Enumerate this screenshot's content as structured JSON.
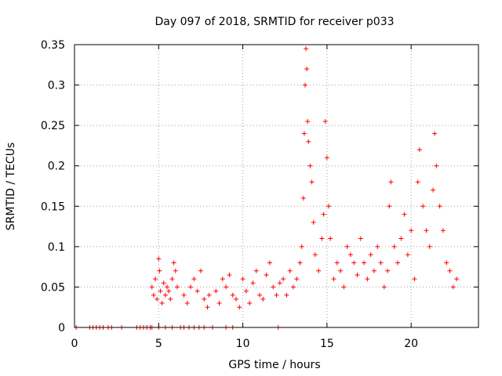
{
  "chart_data": {
    "type": "scatter",
    "title": "Day 097 of 2018, SRMTID for receiver p033",
    "xlabel": "GPS time / hours",
    "ylabel": "SRMTID / TECUs",
    "xlim": [
      0,
      24
    ],
    "ylim": [
      0,
      0.35
    ],
    "xticks": [
      0,
      5,
      10,
      15,
      20
    ],
    "xtick_labels": [
      "0",
      "5",
      "10",
      "15",
      "20"
    ],
    "yticks": [
      0,
      0.05,
      0.1,
      0.15,
      0.2,
      0.25,
      0.3,
      0.35
    ],
    "ytick_labels": [
      "0",
      "0.05",
      "0.1",
      "0.15",
      "0.2",
      "0.25",
      "0.3",
      "0.35"
    ],
    "grid": true,
    "legend": "none",
    "marker": "+",
    "series": [
      {
        "name": "SRMTID",
        "color": "#ff0000",
        "points": [
          [
            0.1,
            0
          ],
          [
            0.9,
            0
          ],
          [
            1.1,
            0
          ],
          [
            1.3,
            0
          ],
          [
            1.5,
            0
          ],
          [
            1.7,
            0
          ],
          [
            2.0,
            0
          ],
          [
            2.2,
            0
          ],
          [
            2.8,
            0
          ],
          [
            3.7,
            0
          ],
          [
            3.9,
            0
          ],
          [
            4.1,
            0
          ],
          [
            4.3,
            0
          ],
          [
            4.5,
            0
          ],
          [
            4.6,
            0
          ],
          [
            5.0,
            0
          ],
          [
            5.4,
            0
          ],
          [
            5.8,
            0
          ],
          [
            6.3,
            0
          ],
          [
            6.5,
            0
          ],
          [
            6.8,
            0
          ],
          [
            7.1,
            0
          ],
          [
            7.4,
            0
          ],
          [
            7.7,
            0
          ],
          [
            8.2,
            0
          ],
          [
            9.0,
            0
          ],
          [
            9.4,
            0
          ],
          [
            12.1,
            0
          ],
          [
            4.6,
            0.05
          ],
          [
            4.7,
            0.04
          ],
          [
            4.8,
            0.06
          ],
          [
            4.9,
            0.035
          ],
          [
            5.0,
            0.085
          ],
          [
            5.05,
            0.07
          ],
          [
            5.1,
            0.045
          ],
          [
            5.2,
            0.03
          ],
          [
            5.3,
            0.055
          ],
          [
            5.4,
            0.04
          ],
          [
            5.5,
            0.05
          ],
          [
            5.6,
            0.045
          ],
          [
            5.7,
            0.035
          ],
          [
            5.8,
            0.06
          ],
          [
            5.9,
            0.08
          ],
          [
            6.0,
            0.07
          ],
          [
            6.1,
            0.05
          ],
          [
            6.5,
            0.04
          ],
          [
            6.7,
            0.03
          ],
          [
            6.9,
            0.05
          ],
          [
            7.1,
            0.06
          ],
          [
            7.3,
            0.045
          ],
          [
            7.5,
            0.07
          ],
          [
            7.7,
            0.035
          ],
          [
            7.9,
            0.025
          ],
          [
            8.0,
            0.04
          ],
          [
            8.4,
            0.045
          ],
          [
            8.6,
            0.03
          ],
          [
            8.8,
            0.06
          ],
          [
            9.0,
            0.05
          ],
          [
            9.2,
            0.065
          ],
          [
            9.4,
            0.04
          ],
          [
            9.6,
            0.035
          ],
          [
            9.8,
            0.025
          ],
          [
            10.0,
            0.06
          ],
          [
            10.2,
            0.045
          ],
          [
            10.4,
            0.03
          ],
          [
            10.6,
            0.055
          ],
          [
            10.8,
            0.07
          ],
          [
            11.0,
            0.04
          ],
          [
            11.2,
            0.035
          ],
          [
            11.4,
            0.065
          ],
          [
            11.6,
            0.08
          ],
          [
            11.8,
            0.05
          ],
          [
            12.0,
            0.04
          ],
          [
            12.2,
            0.055
          ],
          [
            12.4,
            0.06
          ],
          [
            12.6,
            0.04
          ],
          [
            12.8,
            0.07
          ],
          [
            13.0,
            0.05
          ],
          [
            13.2,
            0.06
          ],
          [
            13.4,
            0.08
          ],
          [
            13.5,
            0.1
          ],
          [
            13.6,
            0.16
          ],
          [
            13.65,
            0.24
          ],
          [
            13.7,
            0.3
          ],
          [
            13.75,
            0.345
          ],
          [
            13.8,
            0.32
          ],
          [
            13.85,
            0.255
          ],
          [
            13.9,
            0.23
          ],
          [
            14.0,
            0.2
          ],
          [
            14.1,
            0.18
          ],
          [
            14.2,
            0.13
          ],
          [
            14.3,
            0.09
          ],
          [
            14.5,
            0.07
          ],
          [
            14.7,
            0.11
          ],
          [
            14.8,
            0.14
          ],
          [
            14.9,
            0.255
          ],
          [
            15.0,
            0.21
          ],
          [
            15.1,
            0.15
          ],
          [
            15.2,
            0.11
          ],
          [
            15.4,
            0.06
          ],
          [
            15.6,
            0.08
          ],
          [
            15.8,
            0.07
          ],
          [
            16.0,
            0.05
          ],
          [
            16.2,
            0.1
          ],
          [
            16.4,
            0.09
          ],
          [
            16.6,
            0.08
          ],
          [
            16.8,
            0.065
          ],
          [
            17.0,
            0.11
          ],
          [
            17.2,
            0.08
          ],
          [
            17.4,
            0.06
          ],
          [
            17.6,
            0.09
          ],
          [
            17.8,
            0.07
          ],
          [
            18.0,
            0.1
          ],
          [
            18.2,
            0.08
          ],
          [
            18.4,
            0.05
          ],
          [
            18.6,
            0.07
          ],
          [
            18.7,
            0.15
          ],
          [
            18.8,
            0.18
          ],
          [
            19.0,
            0.1
          ],
          [
            19.2,
            0.08
          ],
          [
            19.4,
            0.11
          ],
          [
            19.6,
            0.14
          ],
          [
            19.8,
            0.09
          ],
          [
            20.0,
            0.12
          ],
          [
            20.2,
            0.06
          ],
          [
            20.4,
            0.18
          ],
          [
            20.5,
            0.22
          ],
          [
            20.7,
            0.15
          ],
          [
            20.9,
            0.12
          ],
          [
            21.1,
            0.1
          ],
          [
            21.3,
            0.17
          ],
          [
            21.4,
            0.24
          ],
          [
            21.5,
            0.2
          ],
          [
            21.7,
            0.15
          ],
          [
            21.9,
            0.12
          ],
          [
            22.1,
            0.08
          ],
          [
            22.3,
            0.07
          ],
          [
            22.5,
            0.05
          ],
          [
            22.7,
            0.06
          ]
        ]
      }
    ]
  }
}
